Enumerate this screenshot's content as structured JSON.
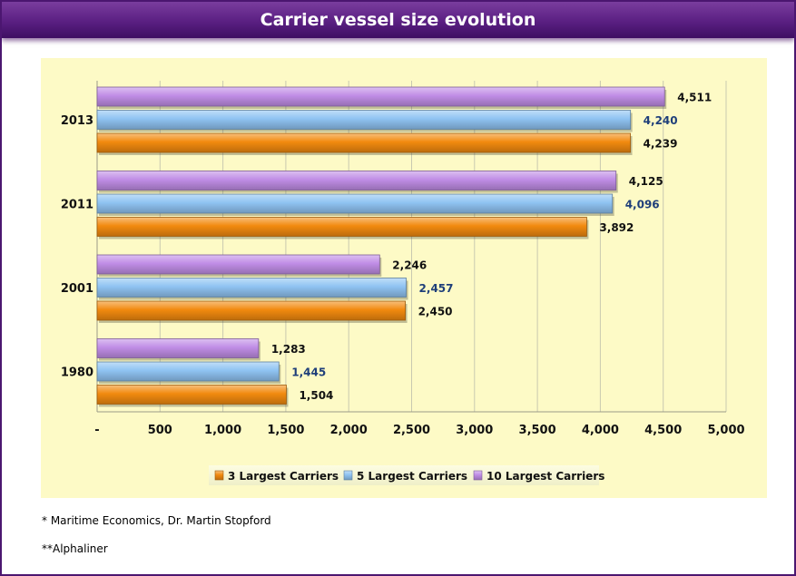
{
  "title": "Carrier vessel size evolution",
  "chart_data": {
    "type": "bar",
    "orientation": "horizontal",
    "title": "Carrier vessel size evolution",
    "categories": [
      "2013",
      "2011",
      "2001",
      "1980"
    ],
    "series": [
      {
        "name": "10 Largest Carriers",
        "color": "#c08de6",
        "values": [
          4511,
          4125,
          2246,
          1283
        ],
        "labels": [
          "4,511",
          "4,125",
          "2,246",
          "1,283"
        ]
      },
      {
        "name": "5 Largest Carriers",
        "color": "#8fc3f2",
        "values": [
          4240,
          4096,
          2457,
          1445
        ],
        "labels": [
          "4,240",
          "4,096",
          "2,457",
          "1,445"
        ]
      },
      {
        "name": "3 Largest Carriers",
        "color": "#f28a0f",
        "values": [
          4239,
          3892,
          2450,
          1504
        ],
        "labels": [
          "4,239",
          "3,892",
          "2,450",
          "1,504"
        ]
      }
    ],
    "legend_order": [
      "3 Largest Carriers",
      "5 Largest Carriers",
      "10 Largest Carriers"
    ],
    "xlim": [
      0,
      5000
    ],
    "xticks": [
      0,
      500,
      1000,
      1500,
      2000,
      2500,
      3000,
      3500,
      4000,
      4500,
      5000
    ],
    "xtick_labels": [
      "-",
      "500",
      "1,000",
      "1,500",
      "2,000",
      "2,500",
      "3,000",
      "3,500",
      "4,000",
      "4,500",
      "5,000"
    ],
    "grid": true,
    "legend_position": "bottom",
    "xlabel": "",
    "ylabel": ""
  },
  "notes": [
    "* Maritime Economics, Dr. Martin Stopford",
    "**Alphaliner"
  ]
}
